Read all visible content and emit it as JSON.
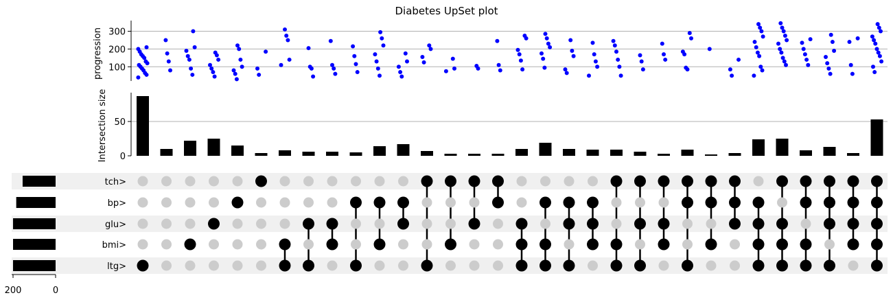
{
  "chart_data": {
    "type": "upset",
    "title": "Diabetes UpSet plot",
    "sets": [
      "tch>",
      "bp>",
      "glu>",
      "bmi>",
      "ltg>"
    ],
    "set_sizes": [
      155,
      185,
      200,
      200,
      200
    ],
    "set_size_ticks": [
      "200",
      "0"
    ],
    "intersection_size": {
      "ylabel": "Intersection size",
      "ylim": [
        0,
        92
      ],
      "ticks": [
        "0",
        "50"
      ],
      "values": [
        87,
        10,
        22,
        25,
        15,
        4,
        8,
        6,
        6,
        5,
        14,
        17,
        7,
        3,
        3,
        3,
        10,
        19,
        10,
        9,
        9,
        6,
        3,
        9,
        2,
        4,
        24,
        25,
        8,
        13,
        4,
        53
      ]
    },
    "progression": {
      "ylabel": "progression",
      "ylim": [
        20,
        360
      ],
      "ticks": [
        "100",
        "200",
        "300"
      ],
      "point_color": "#0000ff",
      "points": [
        [
          40,
          55,
          65,
          80,
          90,
          100,
          110,
          120,
          130,
          150,
          160,
          170,
          185,
          200,
          210
        ],
        [
          80,
          130,
          175,
          250
        ],
        [
          55,
          90,
          140,
          160,
          190,
          210,
          300
        ],
        [
          45,
          70,
          90,
          110,
          140,
          165,
          180
        ],
        [
          30,
          60,
          80,
          100,
          140,
          200,
          220
        ],
        [
          55,
          90,
          185
        ],
        [
          110,
          140,
          250,
          275,
          310
        ],
        [
          45,
          90,
          100,
          205
        ],
        [
          60,
          90,
          110,
          245
        ],
        [
          70,
          115,
          160,
          215
        ],
        [
          50,
          90,
          130,
          170,
          220,
          260,
          295
        ],
        [
          45,
          70,
          100,
          130,
          175
        ],
        [
          125,
          155,
          200,
          220
        ],
        [
          75,
          90,
          145
        ],
        [
          90,
          105
        ],
        [
          80,
          110,
          245
        ],
        [
          85,
          135,
          170,
          195,
          260,
          275
        ],
        [
          95,
          145,
          175,
          210,
          230,
          260,
          285
        ],
        [
          65,
          85,
          160,
          190,
          250
        ],
        [
          50,
          100,
          130,
          170,
          235
        ],
        [
          50,
          100,
          140,
          185,
          220,
          245
        ],
        [
          85,
          130,
          165
        ],
        [
          140,
          170,
          230
        ],
        [
          85,
          95,
          170,
          185,
          260,
          290
        ],
        [
          200
        ],
        [
          50,
          85,
          140
        ],
        [
          50,
          80,
          100,
          160,
          180,
          210,
          240,
          270,
          300,
          320,
          340
        ],
        [
          110,
          130,
          150,
          180,
          200,
          230,
          250,
          275,
          300,
          320,
          345
        ],
        [
          110,
          140,
          170,
          200,
          235,
          255
        ],
        [
          60,
          90,
          120,
          155,
          190,
          240,
          280
        ],
        [
          60,
          110,
          240,
          260
        ],
        [
          70,
          100,
          130,
          160,
          180,
          200,
          230,
          250,
          270,
          300,
          320,
          340
        ]
      ]
    },
    "membership": [
      [
        0,
        0,
        0,
        0,
        1
      ],
      [
        0,
        0,
        0,
        0,
        0
      ],
      [
        0,
        0,
        0,
        1,
        0
      ],
      [
        0,
        0,
        1,
        0,
        0
      ],
      [
        0,
        1,
        0,
        0,
        0
      ],
      [
        1,
        0,
        0,
        0,
        0
      ],
      [
        0,
        0,
        0,
        1,
        1
      ],
      [
        0,
        0,
        1,
        0,
        1
      ],
      [
        0,
        0,
        1,
        1,
        0
      ],
      [
        0,
        1,
        0,
        0,
        1
      ],
      [
        0,
        1,
        0,
        1,
        0
      ],
      [
        0,
        1,
        1,
        0,
        0
      ],
      [
        1,
        0,
        0,
        0,
        1
      ],
      [
        1,
        0,
        0,
        1,
        0
      ],
      [
        1,
        0,
        1,
        0,
        0
      ],
      [
        1,
        1,
        0,
        0,
        0
      ],
      [
        0,
        0,
        1,
        1,
        1
      ],
      [
        0,
        1,
        0,
        1,
        1
      ],
      [
        0,
        1,
        1,
        0,
        1
      ],
      [
        0,
        1,
        1,
        1,
        0
      ],
      [
        1,
        0,
        0,
        1,
        1
      ],
      [
        1,
        0,
        1,
        0,
        1
      ],
      [
        1,
        0,
        1,
        1,
        0
      ],
      [
        1,
        1,
        0,
        0,
        1
      ],
      [
        1,
        1,
        0,
        1,
        0
      ],
      [
        1,
        1,
        1,
        0,
        0
      ],
      [
        0,
        1,
        1,
        1,
        1
      ],
      [
        1,
        0,
        1,
        1,
        1
      ],
      [
        1,
        1,
        0,
        1,
        1
      ],
      [
        1,
        1,
        1,
        0,
        1
      ],
      [
        1,
        1,
        1,
        1,
        0
      ],
      [
        1,
        1,
        1,
        1,
        1
      ]
    ]
  }
}
